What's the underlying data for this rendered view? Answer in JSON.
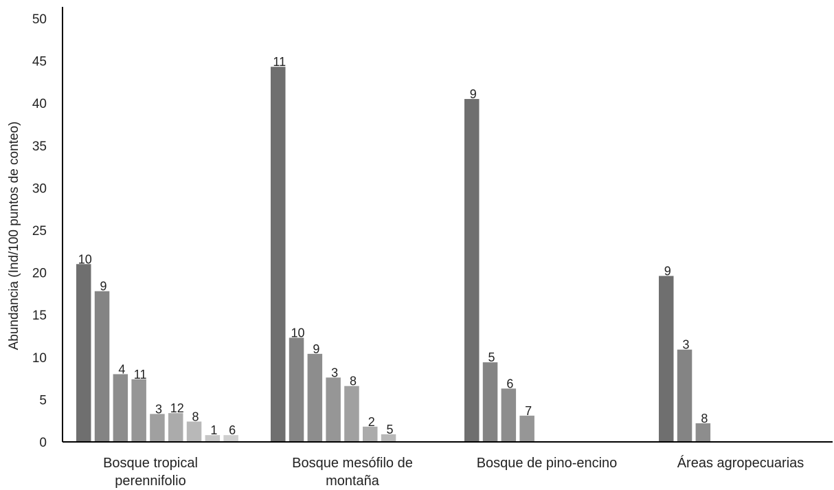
{
  "chart_data": {
    "type": "bar",
    "ylabel": "Abundancia  (Ind/100 puntos de conteo)",
    "xlabel": "",
    "ylim": [
      0,
      50
    ],
    "yticks": [
      0,
      5,
      10,
      15,
      20,
      25,
      30,
      35,
      40,
      45,
      50
    ],
    "grid": false,
    "groups": [
      {
        "category": [
          "Bosque tropical",
          "perennifolio"
        ],
        "bars": [
          {
            "label": "10",
            "value": 21.0
          },
          {
            "label": "9",
            "value": 17.8
          },
          {
            "label": "4",
            "value": 8.0
          },
          {
            "label": "11",
            "value": 7.4
          },
          {
            "label": "3",
            "value": 3.3
          },
          {
            "label": "12",
            "value": 3.4
          },
          {
            "label": "8",
            "value": 2.4
          },
          {
            "label": "1",
            "value": 0.8
          },
          {
            "label": "6",
            "value": 0.8
          }
        ]
      },
      {
        "category": [
          "Bosque mesófilo de",
          "montaña"
        ],
        "bars": [
          {
            "label": "11",
            "value": 44.3
          },
          {
            "label": "10",
            "value": 12.3
          },
          {
            "label": "9",
            "value": 10.4
          },
          {
            "label": "3",
            "value": 7.6
          },
          {
            "label": "8",
            "value": 6.6
          },
          {
            "label": "2",
            "value": 1.8
          },
          {
            "label": "5",
            "value": 0.9
          }
        ]
      },
      {
        "category": [
          "Bosque de pino-encino"
        ],
        "bars": [
          {
            "label": "9",
            "value": 40.5
          },
          {
            "label": "5",
            "value": 9.4
          },
          {
            "label": "6",
            "value": 6.3
          },
          {
            "label": "7",
            "value": 3.1
          }
        ]
      },
      {
        "category": [
          "Áreas agropecuarias"
        ],
        "bars": [
          {
            "label": "9",
            "value": 19.6
          },
          {
            "label": "3",
            "value": 10.9
          },
          {
            "label": "8",
            "value": 2.2
          }
        ]
      }
    ],
    "colors": {
      "shades": [
        "#6f6f6f",
        "#848484",
        "#8d8d8d",
        "#969696",
        "#a0a0a0",
        "#ababab",
        "#b8b8b8",
        "#c6c6c6",
        "#cfcfcf"
      ],
      "axis": "#000000",
      "text": "#222222"
    }
  }
}
